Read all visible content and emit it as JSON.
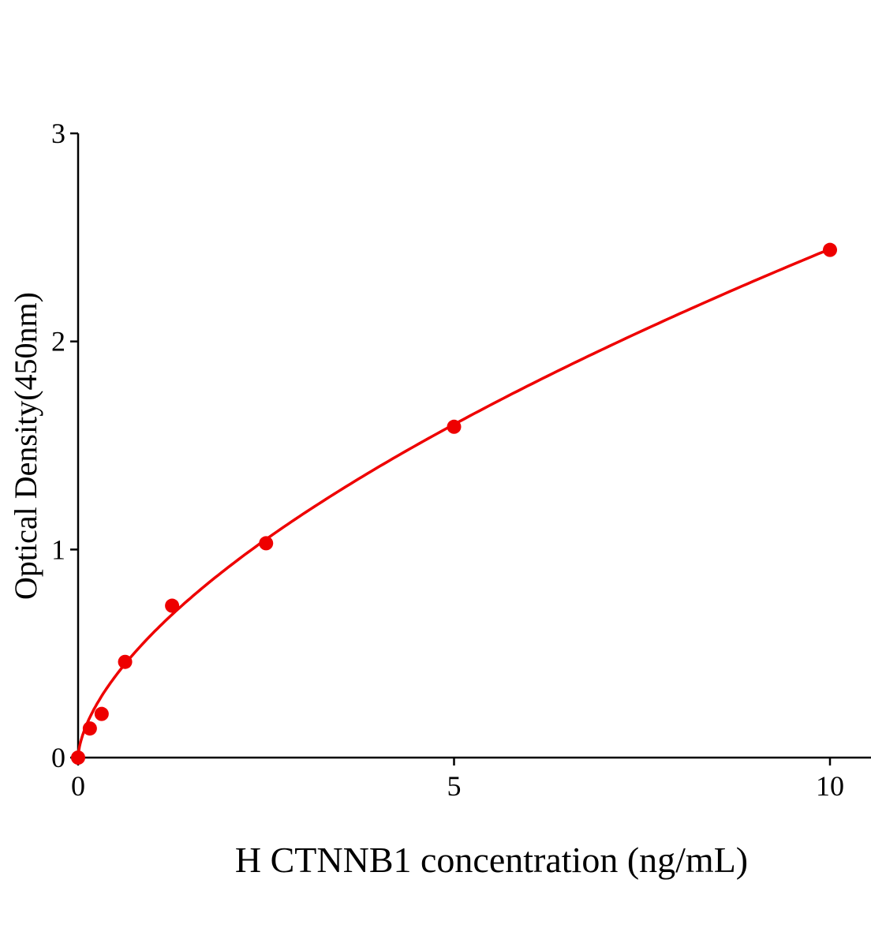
{
  "chart_data": {
    "type": "scatter",
    "title": "",
    "xlabel": "H CTNNB1 concentration (ng/mL)",
    "ylabel": "Optical Density(450nm)",
    "xlim": [
      0,
      10.5
    ],
    "ylim": [
      0,
      3
    ],
    "xticks": [
      "0",
      "5",
      "10"
    ],
    "yticks": [
      "0",
      "1",
      "2",
      "3"
    ],
    "grid": false,
    "legend": "none",
    "color": "#ee0000",
    "fit_line": true,
    "points": {
      "x": [
        0,
        0.156,
        0.313,
        0.625,
        1.25,
        2.5,
        5,
        10
      ],
      "y": [
        0,
        0.14,
        0.21,
        0.46,
        0.73,
        1.03,
        1.59,
        2.44
      ]
    }
  }
}
